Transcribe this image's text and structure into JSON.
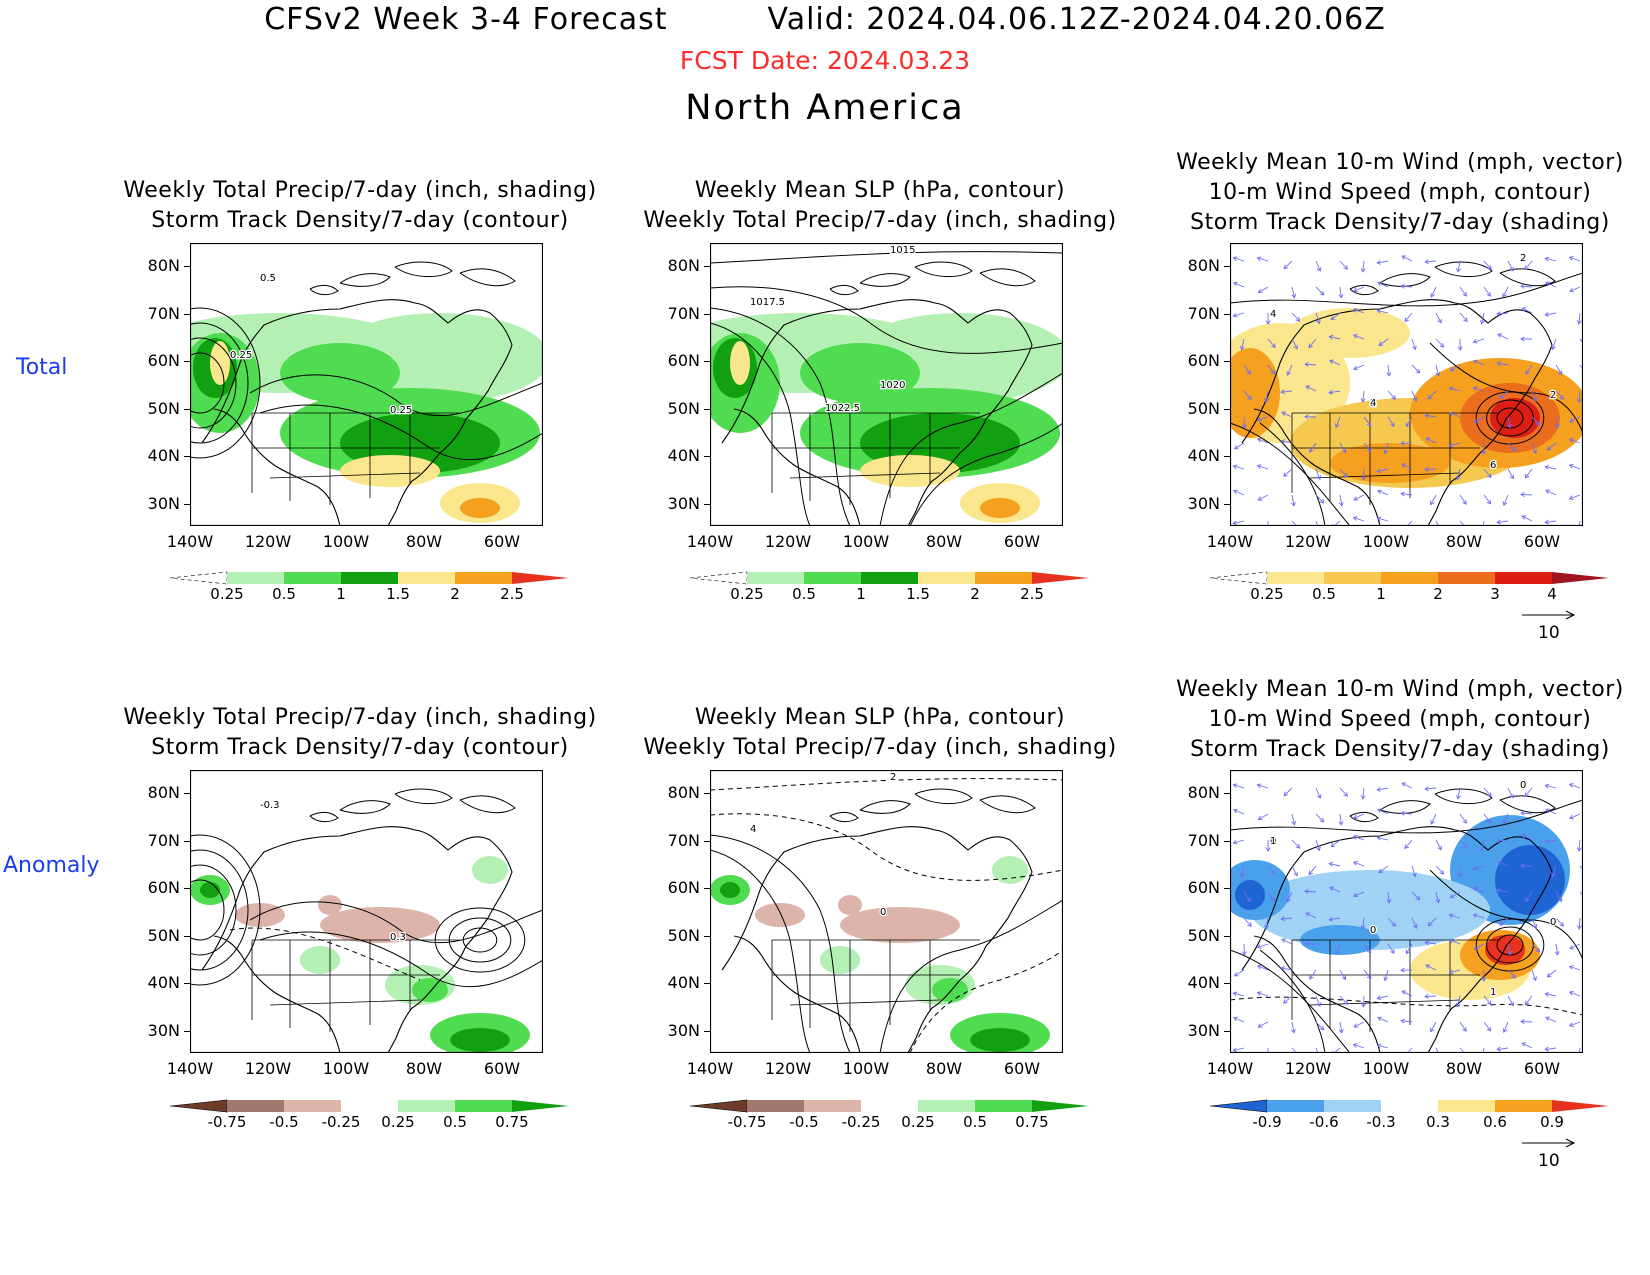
{
  "header": {
    "title": "CFSv2 Week 3-4 Forecast",
    "valid": "Valid: 2024.04.06.12Z-2024.04.20.06Z",
    "fcst_date": "FCST Date: 2024.03.23",
    "region": "North America",
    "fcst_color": "#ff2a2a"
  },
  "rows": [
    {
      "label": "Total"
    },
    {
      "label": "Anomaly"
    }
  ],
  "panels": [
    {
      "title": [
        "Weekly Total Precip/7-day (inch, shading)",
        "Storm Track Density/7-day (contour)"
      ],
      "colorbar": [
        "0.25",
        "0.5",
        "1",
        "1.5",
        "2",
        "2.5"
      ],
      "contour_labels": [
        "0.25",
        "0.5",
        "0.25"
      ],
      "scheme": "precip"
    },
    {
      "title": [
        "Weekly Mean SLP (hPa, contour)",
        "Weekly Total Precip/7-day (inch, shading)"
      ],
      "colorbar": [
        "0.25",
        "0.5",
        "1",
        "1.5",
        "2",
        "2.5"
      ],
      "contour_labels": [
        "1022.5",
        "1017.5",
        "1015",
        "1020"
      ],
      "scheme": "precip"
    },
    {
      "title": [
        "Weekly Mean 10-m Wind (mph, vector)",
        "10-m Wind Speed (mph, contour)",
        "Storm Track Density/7-day (shading)"
      ],
      "colorbar": [
        "0.25",
        "0.5",
        "1",
        "2",
        "3",
        "4"
      ],
      "contour_labels": [
        "2",
        "4",
        "2",
        "2",
        "6",
        "4",
        "4",
        "2"
      ],
      "scheme": "storm",
      "vector_ref": "10"
    },
    {
      "title": [
        "Weekly Total Precip/7-day (inch, shading)",
        "Storm Track Density/7-day (contour)"
      ],
      "colorbar": [
        "-0.75",
        "-0.5",
        "-0.25",
        "0.25",
        "0.5",
        "0.75"
      ],
      "contour_labels": [
        "-0.3",
        "0.3"
      ],
      "scheme": "anom"
    },
    {
      "title": [
        "Weekly Mean SLP (hPa, contour)",
        "Weekly Total Precip/7-day (inch, shading)"
      ],
      "colorbar": [
        "-0.75",
        "-0.5",
        "-0.25",
        "0.25",
        "0.5",
        "0.75"
      ],
      "contour_labels": [
        "4",
        "2",
        "0"
      ],
      "scheme": "anom"
    },
    {
      "title": [
        "Weekly Mean 10-m Wind (mph, vector)",
        "10-m Wind Speed (mph, contour)",
        "Storm Track Density/7-day (shading)"
      ],
      "colorbar": [
        "-0.9",
        "-0.6",
        "-0.3",
        "0.3",
        "0.6",
        "0.9"
      ],
      "contour_labels": [
        "0",
        "2",
        "0",
        "1",
        "0",
        "1",
        "0"
      ],
      "scheme": "stormanom",
      "vector_ref": "10"
    }
  ],
  "axes": {
    "lat_labels": [
      "80N",
      "70N",
      "60N",
      "50N",
      "40N",
      "30N"
    ],
    "lon_labels": [
      "140W",
      "120W",
      "100W",
      "80W",
      "60W"
    ]
  },
  "palettes": {
    "precip": [
      "#ffffff",
      "#b4f0b4",
      "#50dc50",
      "#10a010",
      "#fae68c",
      "#f5a01e",
      "#e6321e"
    ],
    "anom": [
      "#6e3c28",
      "#a0786e",
      "#dcb4aa",
      "#ffffff",
      "#b4f0b4",
      "#50dc50",
      "#10a010"
    ],
    "storm": [
      "#ffffff",
      "#fae68c",
      "#f5c850",
      "#f5a01e",
      "#eb6e1e",
      "#dc1e14",
      "#a0141e"
    ],
    "stormanom": [
      "#1e64d2",
      "#4ba0eb",
      "#a0d2f5",
      "#ffffff",
      "#fae68c",
      "#f5a01e",
      "#e6321e"
    ]
  }
}
